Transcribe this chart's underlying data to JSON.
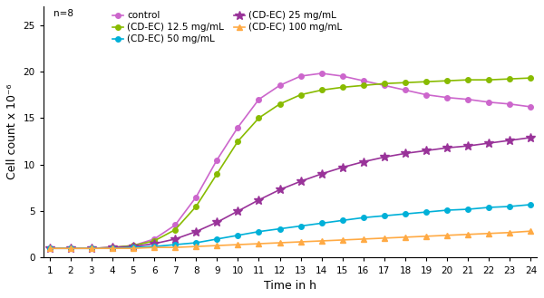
{
  "title": "",
  "xlabel": "Time in h",
  "ylabel": "Cell count x 10⁻⁶",
  "ylim": [
    0,
    27
  ],
  "xlim": [
    1,
    24
  ],
  "n_label": "n=8",
  "series": [
    {
      "label": "control",
      "color": "#cc66cc",
      "marker": "o",
      "marker_size": 4,
      "linewidth": 1.2,
      "values": [
        1.0,
        1.0,
        1.0,
        1.1,
        1.3,
        2.0,
        3.5,
        6.5,
        10.5,
        14.0,
        17.0,
        18.5,
        19.5,
        19.8,
        19.5,
        19.0,
        18.5,
        18.0,
        17.5,
        17.2,
        17.0,
        16.7,
        16.5,
        16.2
      ]
    },
    {
      "label": "(CD-EC) 12.5 mg/mL",
      "color": "#88bb00",
      "marker": "o",
      "marker_size": 4,
      "linewidth": 1.2,
      "values": [
        1.0,
        1.0,
        1.0,
        1.1,
        1.3,
        1.8,
        3.0,
        5.5,
        9.0,
        12.5,
        15.0,
        16.5,
        17.5,
        18.0,
        18.3,
        18.5,
        18.7,
        18.8,
        18.9,
        19.0,
        19.1,
        19.1,
        19.2,
        19.3
      ]
    },
    {
      "label": "(CD-EC) 25 mg/mL",
      "color": "#993399",
      "marker": "*",
      "marker_size": 7,
      "linewidth": 1.2,
      "values": [
        1.0,
        1.0,
        1.0,
        1.1,
        1.2,
        1.5,
        2.0,
        2.8,
        3.8,
        5.0,
        6.2,
        7.3,
        8.2,
        9.0,
        9.7,
        10.3,
        10.8,
        11.2,
        11.5,
        11.8,
        12.0,
        12.3,
        12.6,
        12.9
      ]
    },
    {
      "label": "(CD-EC) 50 mg/mL",
      "color": "#00b0d8",
      "marker": "o",
      "marker_size": 4,
      "linewidth": 1.2,
      "values": [
        1.0,
        1.0,
        1.0,
        1.0,
        1.1,
        1.2,
        1.4,
        1.6,
        2.0,
        2.4,
        2.8,
        3.1,
        3.4,
        3.7,
        4.0,
        4.3,
        4.5,
        4.7,
        4.9,
        5.1,
        5.2,
        5.4,
        5.5,
        5.7
      ]
    },
    {
      "label": "(CD-EC) 100 mg/mL",
      "color": "#ffaa44",
      "marker": "^",
      "marker_size": 4,
      "linewidth": 1.2,
      "values": [
        1.0,
        1.0,
        1.0,
        1.0,
        1.0,
        1.1,
        1.1,
        1.2,
        1.3,
        1.4,
        1.5,
        1.6,
        1.7,
        1.8,
        1.9,
        2.0,
        2.1,
        2.2,
        2.3,
        2.4,
        2.5,
        2.6,
        2.7,
        2.85
      ]
    }
  ],
  "yticks": [
    0,
    5,
    10,
    15,
    20,
    25
  ],
  "xticks": [
    1,
    2,
    3,
    4,
    5,
    6,
    7,
    8,
    9,
    10,
    11,
    12,
    13,
    14,
    15,
    16,
    17,
    18,
    19,
    20,
    21,
    22,
    23,
    24
  ],
  "background_color": "#ffffff",
  "legend_fontsize": 7.5,
  "axis_fontsize": 9,
  "tick_fontsize": 7.5
}
